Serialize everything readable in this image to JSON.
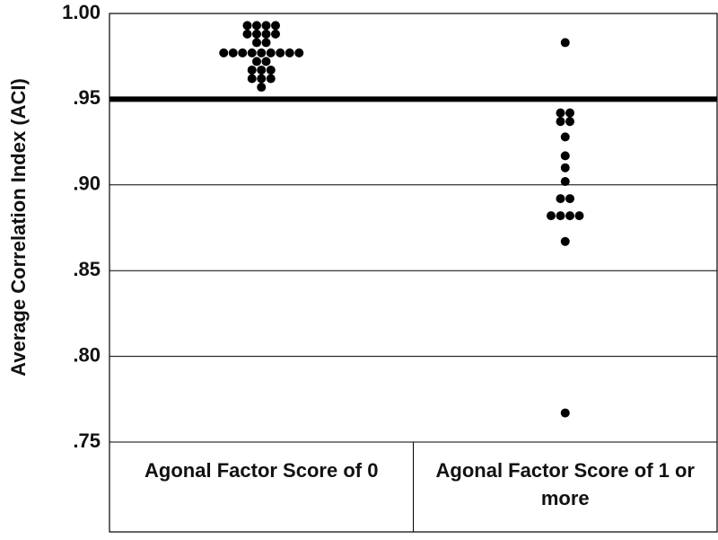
{
  "chart_data": {
    "type": "strip",
    "y_label": "Average Correlation Index (ACI)",
    "categories": [
      "Agonal Factor Score of 0",
      "Agonal Factor Score of 1 or more"
    ],
    "values": [
      [
        0.993,
        0.993,
        0.993,
        0.993,
        0.988,
        0.988,
        0.988,
        0.988,
        0.983,
        0.983,
        0.977,
        0.977,
        0.977,
        0.977,
        0.977,
        0.977,
        0.977,
        0.977,
        0.977,
        0.972,
        0.972,
        0.967,
        0.967,
        0.967,
        0.962,
        0.962,
        0.962,
        0.957
      ],
      [
        0.983,
        0.942,
        0.942,
        0.937,
        0.937,
        0.928,
        0.917,
        0.91,
        0.902,
        0.892,
        0.892,
        0.882,
        0.882,
        0.882,
        0.882,
        0.867,
        0.767
      ]
    ],
    "color": "#000000",
    "reference_line": 0.95,
    "ylim": [
      0.75,
      1.0
    ],
    "yticks": [
      {
        "value": 0.75,
        "label": ".75"
      },
      {
        "value": 0.8,
        "label": ".80"
      },
      {
        "value": 0.85,
        "label": ".85"
      },
      {
        "value": 0.9,
        "label": ".90"
      },
      {
        "value": 0.95,
        "label": ".95"
      },
      {
        "value": 1.0,
        "label": "1.00"
      }
    ],
    "grid": true
  }
}
